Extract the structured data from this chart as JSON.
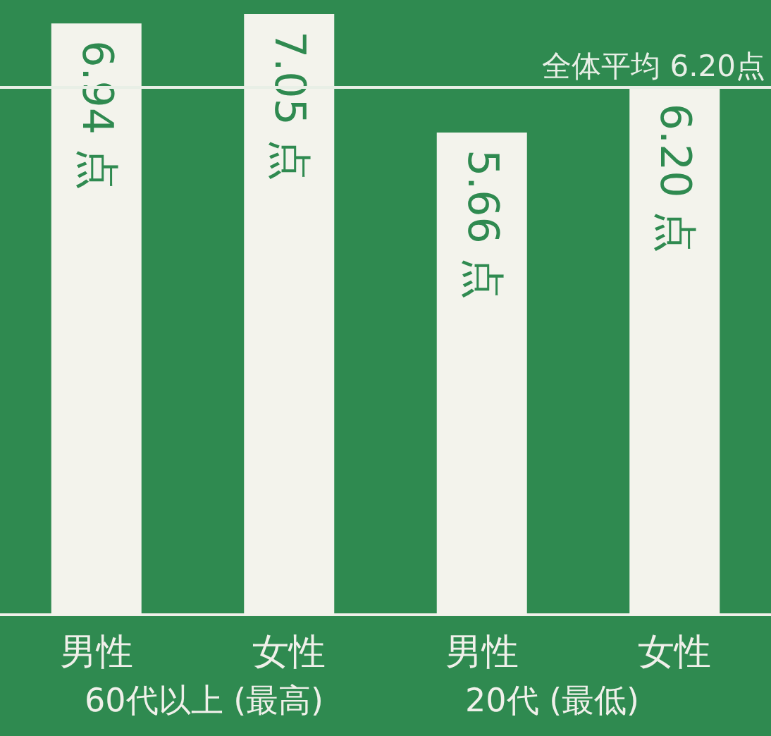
{
  "chart_data": {
    "type": "bar",
    "categories": [
      "男性",
      "女性",
      "男性",
      "女性"
    ],
    "values": [
      6.94,
      7.05,
      5.66,
      6.2
    ],
    "color": "#f3f3ec",
    "data_labels": true,
    "value_labels": [
      "6.94 点",
      "7.05 点",
      "5.66 点",
      "6.20 点"
    ],
    "ref_lines": [
      {
        "axis": "y",
        "value": 6.2,
        "label": "全体平均 6.20点",
        "color": "#e8efe6"
      }
    ],
    "annotations": [
      "60代以上 (最高)",
      "20代 (最低)"
    ]
  }
}
